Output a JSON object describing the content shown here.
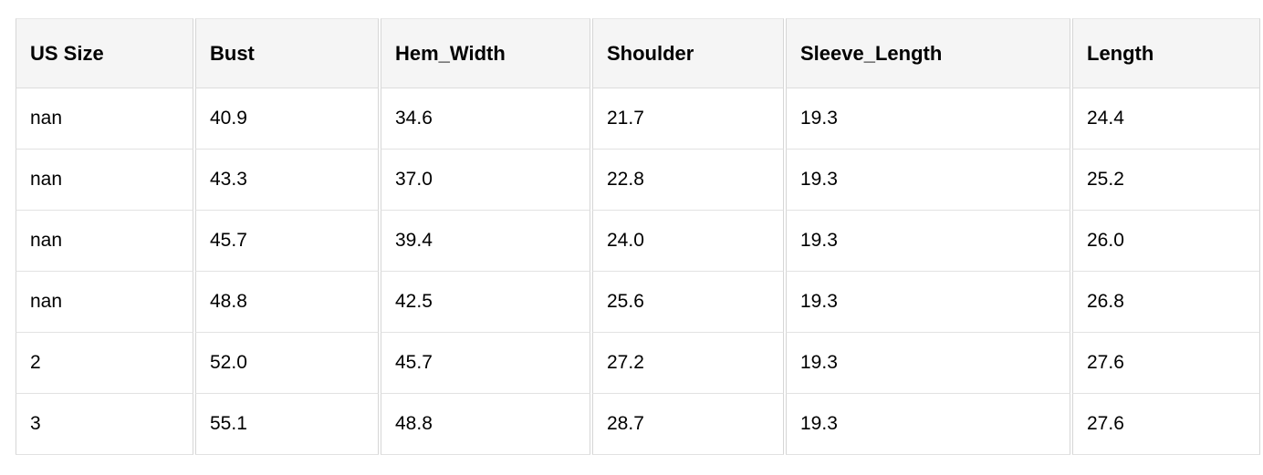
{
  "chart_data": {
    "type": "table",
    "title": "",
    "columns": [
      "US Size",
      "Bust",
      "Hem_Width",
      "Shoulder",
      "Sleeve_Length",
      "Length"
    ],
    "rows": [
      [
        "nan",
        "40.9",
        "34.6",
        "21.7",
        "19.3",
        "24.4"
      ],
      [
        "nan",
        "43.3",
        "37.0",
        "22.8",
        "19.3",
        "25.2"
      ],
      [
        "nan",
        "45.7",
        "39.4",
        "24.0",
        "19.3",
        "26.0"
      ],
      [
        "nan",
        "48.8",
        "42.5",
        "25.6",
        "19.3",
        "26.8"
      ],
      [
        "2",
        "52.0",
        "45.7",
        "27.2",
        "19.3",
        "27.6"
      ],
      [
        "3",
        "55.1",
        "48.8",
        "28.7",
        "19.3",
        "27.6"
      ]
    ],
    "layout": {
      "grid": true,
      "header_row": true
    }
  },
  "colors": {
    "header_bg": "#f5f5f5",
    "row_bg": "#ffffff",
    "border_vertical": "#d6d6d6",
    "border_horizontal": "#e2e2e2",
    "text": "#000000"
  }
}
